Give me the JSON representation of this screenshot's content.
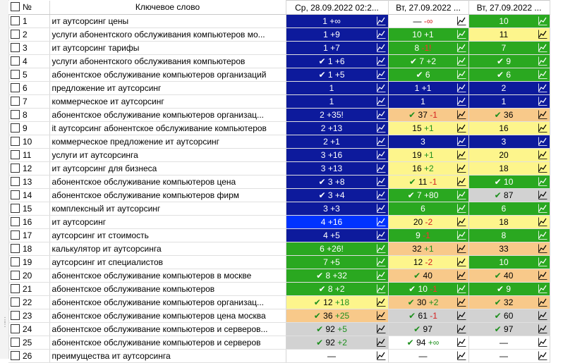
{
  "header": {
    "num": "№",
    "keyword": "Ключевое слово",
    "dates": [
      "Ср, 28.09.2022 02:2...",
      "Вт, 27.09.2022 ...",
      "Вт, 27.09.2022 ..."
    ]
  },
  "rows": [
    {
      "n": "1",
      "kw": "ит аутсорсинг цены",
      "c": [
        {
          "bg": "navy",
          "check": false,
          "v": "1",
          "d": "+∞",
          "neg": false
        },
        {
          "bg": "white",
          "check": false,
          "v": "—",
          "d": "-∞",
          "neg": true
        },
        {
          "bg": "green",
          "check": false,
          "v": "10",
          "d": "",
          "neg": false
        }
      ]
    },
    {
      "n": "2",
      "kw": "услуги абонентского обслуживания компьютеров мо...",
      "c": [
        {
          "bg": "navy",
          "check": false,
          "v": "1",
          "d": "+9",
          "neg": false
        },
        {
          "bg": "green",
          "check": false,
          "v": "10",
          "d": "+1",
          "neg": false
        },
        {
          "bg": "yellow",
          "check": false,
          "v": "11",
          "d": "",
          "neg": false
        }
      ]
    },
    {
      "n": "3",
      "kw": "ит аутсорсинг тарифы",
      "c": [
        {
          "bg": "navy",
          "check": false,
          "v": "1",
          "d": "+7",
          "neg": false
        },
        {
          "bg": "green",
          "check": false,
          "v": "8",
          "d": "-1!",
          "neg": true
        },
        {
          "bg": "green",
          "check": false,
          "v": "7",
          "d": "",
          "neg": false
        }
      ]
    },
    {
      "n": "4",
      "kw": "услуги абонентского обслуживания компьютеров",
      "c": [
        {
          "bg": "navy",
          "check": true,
          "v": "1",
          "d": "+6",
          "neg": false
        },
        {
          "bg": "green",
          "check": true,
          "v": "7",
          "d": "+2",
          "neg": false
        },
        {
          "bg": "green",
          "check": true,
          "v": "9",
          "d": "",
          "neg": false
        }
      ]
    },
    {
      "n": "5",
      "kw": "абонентское обслуживание компьютеров организаций",
      "c": [
        {
          "bg": "navy",
          "check": true,
          "v": "1",
          "d": "+5",
          "neg": false
        },
        {
          "bg": "green",
          "check": true,
          "v": "6",
          "d": "",
          "neg": false
        },
        {
          "bg": "green",
          "check": true,
          "v": "6",
          "d": "",
          "neg": false
        }
      ]
    },
    {
      "n": "6",
      "kw": "предложение ит аутсорсинг",
      "c": [
        {
          "bg": "navy",
          "check": false,
          "v": "1",
          "d": "",
          "neg": false
        },
        {
          "bg": "navy",
          "check": false,
          "v": "1",
          "d": "+1",
          "neg": false
        },
        {
          "bg": "navy",
          "check": false,
          "v": "2",
          "d": "",
          "neg": false
        }
      ]
    },
    {
      "n": "7",
      "kw": "коммерческое ит аутсорсинг",
      "c": [
        {
          "bg": "navy",
          "check": false,
          "v": "1",
          "d": "",
          "neg": false
        },
        {
          "bg": "navy",
          "check": false,
          "v": "1",
          "d": "",
          "neg": false
        },
        {
          "bg": "navy",
          "check": false,
          "v": "1",
          "d": "",
          "neg": false
        }
      ]
    },
    {
      "n": "8",
      "kw": "абонентское обслуживание компьютеров организац...",
      "c": [
        {
          "bg": "navy",
          "check": false,
          "v": "2",
          "d": "+35!",
          "neg": false
        },
        {
          "bg": "orange",
          "check": true,
          "v": "37",
          "d": "-1",
          "neg": true
        },
        {
          "bg": "orange",
          "check": true,
          "v": "36",
          "d": "",
          "neg": false
        }
      ]
    },
    {
      "n": "9",
      "kw": "it аутсорсинг абонентское обслуживание компьютеров",
      "c": [
        {
          "bg": "navy",
          "check": false,
          "v": "2",
          "d": "+13",
          "neg": false
        },
        {
          "bg": "yellow",
          "check": false,
          "v": "15",
          "d": "+1",
          "neg": false
        },
        {
          "bg": "yellow",
          "check": false,
          "v": "16",
          "d": "",
          "neg": false
        }
      ]
    },
    {
      "n": "10",
      "kw": "коммерческое предложение ит аутсорсинг",
      "c": [
        {
          "bg": "navy",
          "check": false,
          "v": "2",
          "d": "+1",
          "neg": false
        },
        {
          "bg": "navy",
          "check": false,
          "v": "3",
          "d": "",
          "neg": false
        },
        {
          "bg": "navy",
          "check": false,
          "v": "3",
          "d": "",
          "neg": false
        }
      ]
    },
    {
      "n": "11",
      "kw": "услуги ит аутсорсинга",
      "c": [
        {
          "bg": "navy",
          "check": false,
          "v": "3",
          "d": "+16",
          "neg": false
        },
        {
          "bg": "yellow",
          "check": false,
          "v": "19",
          "d": "+1",
          "neg": false
        },
        {
          "bg": "yellow",
          "check": false,
          "v": "20",
          "d": "",
          "neg": false
        }
      ]
    },
    {
      "n": "12",
      "kw": "ит аутсорсинг для бизнеса",
      "c": [
        {
          "bg": "navy",
          "check": false,
          "v": "3",
          "d": "+13",
          "neg": false
        },
        {
          "bg": "yellow",
          "check": false,
          "v": "16",
          "d": "+2",
          "neg": false
        },
        {
          "bg": "yellow",
          "check": false,
          "v": "18",
          "d": "",
          "neg": false
        }
      ]
    },
    {
      "n": "13",
      "kw": "абонентское обслуживание компьютеров цена",
      "c": [
        {
          "bg": "navy",
          "check": true,
          "v": "3",
          "d": "+8",
          "neg": false
        },
        {
          "bg": "yellow",
          "check": true,
          "v": "11",
          "d": "-1",
          "neg": true
        },
        {
          "bg": "green",
          "check": true,
          "v": "10",
          "d": "",
          "neg": false
        }
      ]
    },
    {
      "n": "14",
      "kw": "абонентское обслуживание компьютеров фирм",
      "c": [
        {
          "bg": "navy",
          "check": true,
          "v": "3",
          "d": "+4",
          "neg": false
        },
        {
          "bg": "green",
          "check": true,
          "v": "7",
          "d": "+80",
          "neg": false
        },
        {
          "bg": "gray",
          "check": true,
          "v": "87",
          "d": "",
          "neg": false
        }
      ]
    },
    {
      "n": "15",
      "kw": "комплексный ит аутсорсинг",
      "c": [
        {
          "bg": "navy",
          "check": false,
          "v": "3",
          "d": "+3",
          "neg": false
        },
        {
          "bg": "green",
          "check": false,
          "v": "6",
          "d": "",
          "neg": false
        },
        {
          "bg": "green",
          "check": false,
          "v": "6",
          "d": "",
          "neg": false
        }
      ]
    },
    {
      "n": "16",
      "kw": "ит аутсорсинг",
      "c": [
        {
          "bg": "blue",
          "check": false,
          "v": "4",
          "d": "+16",
          "neg": false
        },
        {
          "bg": "yellow",
          "check": false,
          "v": "20",
          "d": "-2",
          "neg": true
        },
        {
          "bg": "yellow",
          "check": false,
          "v": "18",
          "d": "",
          "neg": false
        }
      ]
    },
    {
      "n": "17",
      "kw": "аутсорсинг ит стоимость",
      "c": [
        {
          "bg": "navy",
          "check": false,
          "v": "4",
          "d": "+5",
          "neg": false
        },
        {
          "bg": "green",
          "check": false,
          "v": "9",
          "d": "-1",
          "neg": true
        },
        {
          "bg": "green",
          "check": false,
          "v": "8",
          "d": "",
          "neg": false
        }
      ]
    },
    {
      "n": "18",
      "kw": "калькулятор ит аутсорсинга",
      "c": [
        {
          "bg": "green",
          "check": false,
          "v": "6",
          "d": "+26!",
          "neg": false
        },
        {
          "bg": "orange",
          "check": false,
          "v": "32",
          "d": "+1",
          "neg": false
        },
        {
          "bg": "orange",
          "check": false,
          "v": "33",
          "d": "",
          "neg": false
        }
      ]
    },
    {
      "n": "19",
      "kw": "аутсорсинг ит специалистов",
      "c": [
        {
          "bg": "green",
          "check": false,
          "v": "7",
          "d": "+5",
          "neg": false
        },
        {
          "bg": "yellow",
          "check": false,
          "v": "12",
          "d": "-2",
          "neg": true
        },
        {
          "bg": "green",
          "check": false,
          "v": "10",
          "d": "",
          "neg": false
        }
      ]
    },
    {
      "n": "20",
      "kw": "абонентское обслуживание компьютеров в москве",
      "c": [
        {
          "bg": "green",
          "check": true,
          "v": "8",
          "d": "+32",
          "neg": false
        },
        {
          "bg": "orange",
          "check": true,
          "v": "40",
          "d": "",
          "neg": false
        },
        {
          "bg": "orange",
          "check": true,
          "v": "40",
          "d": "",
          "neg": false
        }
      ]
    },
    {
      "n": "21",
      "kw": "абонентское обслуживание компьютеров",
      "c": [
        {
          "bg": "green",
          "check": true,
          "v": "8",
          "d": "+2",
          "neg": false
        },
        {
          "bg": "green",
          "check": true,
          "v": "10",
          "d": "-1",
          "neg": true
        },
        {
          "bg": "green",
          "check": true,
          "v": "9",
          "d": "",
          "neg": false
        }
      ]
    },
    {
      "n": "22",
      "kw": "абонентское обслуживание компьютеров организац...",
      "c": [
        {
          "bg": "yellow",
          "check": true,
          "v": "12",
          "d": "+18",
          "neg": false
        },
        {
          "bg": "orange",
          "check": true,
          "v": "30",
          "d": "+2",
          "neg": false
        },
        {
          "bg": "orange",
          "check": true,
          "v": "32",
          "d": "",
          "neg": false
        }
      ]
    },
    {
      "n": "23",
      "kw": "абонентское обслуживание компьютеров цена москва",
      "c": [
        {
          "bg": "orange",
          "check": true,
          "v": "36",
          "d": "+25",
          "neg": false
        },
        {
          "bg": "gray",
          "check": true,
          "v": "61",
          "d": "-1",
          "neg": true
        },
        {
          "bg": "gray",
          "check": true,
          "v": "60",
          "d": "",
          "neg": false
        }
      ]
    },
    {
      "n": "24",
      "kw": "абонентское обслуживание компьютеров и серверов...",
      "c": [
        {
          "bg": "gray",
          "check": true,
          "v": "92",
          "d": "+5",
          "neg": false
        },
        {
          "bg": "gray",
          "check": true,
          "v": "97",
          "d": "",
          "neg": false
        },
        {
          "bg": "gray",
          "check": true,
          "v": "97",
          "d": "",
          "neg": false
        }
      ]
    },
    {
      "n": "25",
      "kw": "абонентское обслуживание компьютеров и серверов",
      "c": [
        {
          "bg": "gray",
          "check": true,
          "v": "92",
          "d": "+2",
          "neg": false
        },
        {
          "bg": "white",
          "check": true,
          "v": "94",
          "d": "+∞",
          "neg": false
        },
        {
          "bg": "white",
          "check": false,
          "v": "—",
          "d": "",
          "neg": false
        }
      ]
    },
    {
      "n": "26",
      "kw": "преимущества ит аутсорсинга",
      "c": [
        {
          "bg": "white",
          "check": false,
          "v": "—",
          "d": "",
          "neg": false
        },
        {
          "bg": "white",
          "check": false,
          "v": "—",
          "d": "",
          "neg": false
        },
        {
          "bg": "white",
          "check": false,
          "v": "—",
          "d": "",
          "neg": false
        }
      ]
    }
  ],
  "icons": {
    "check": "check-icon",
    "chart": "trend-chart-icon"
  }
}
